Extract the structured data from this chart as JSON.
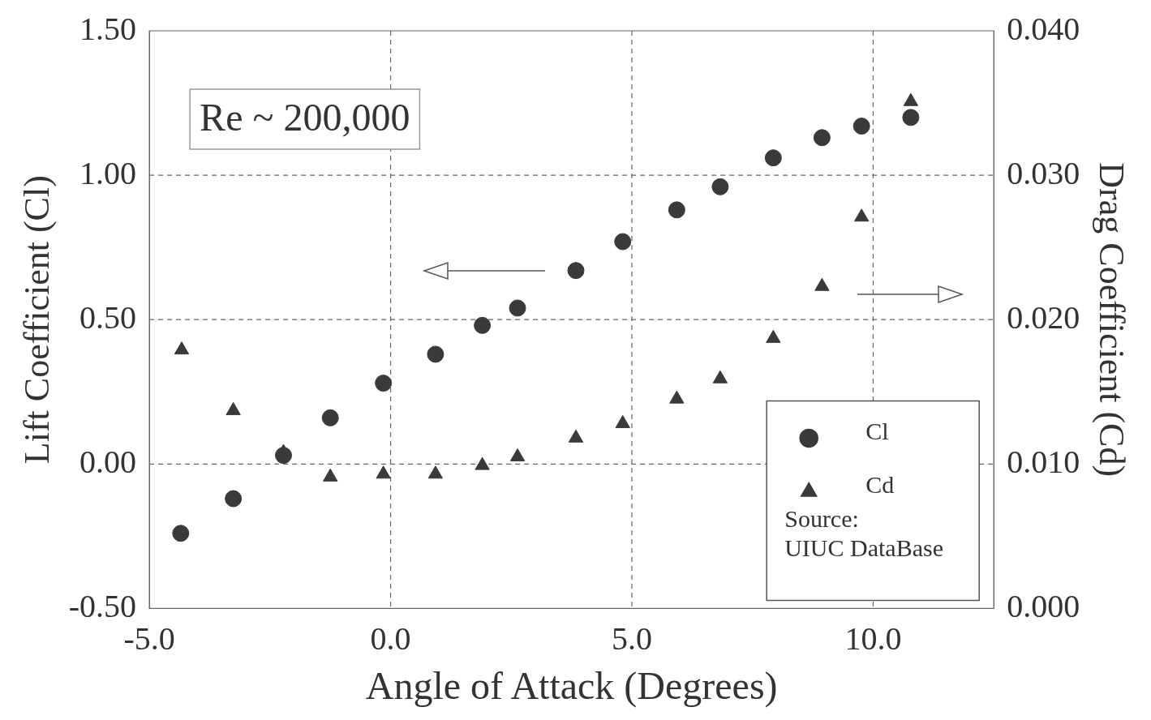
{
  "chart_data": {
    "type": "scatter",
    "xlabel": "Angle of Attack (Degrees)",
    "ylabel": "Lift Coefficient (Cl)",
    "y2label": "Drag Coefficient (Cd)",
    "xlim": [
      -5,
      12.5
    ],
    "xticks": [
      {
        "value": -5,
        "label": "-5.0"
      },
      {
        "value": 0,
        "label": "0.0"
      },
      {
        "value": 5,
        "label": "5.0"
      },
      {
        "value": 10,
        "label": "10.0"
      }
    ],
    "ylim": [
      -0.5,
      1.5
    ],
    "yticks": [
      {
        "value": -0.5,
        "label": "-0.50"
      },
      {
        "value": 0,
        "label": "0.00"
      },
      {
        "value": 0.5,
        "label": "0.50"
      },
      {
        "value": 1,
        "label": "1.00"
      },
      {
        "value": 1.5,
        "label": "1.50"
      }
    ],
    "y2lim": [
      0,
      0.04
    ],
    "y2ticks": [
      {
        "value": 0,
        "label": "0.000"
      },
      {
        "value": 0.01,
        "label": "0.010"
      },
      {
        "value": 0.02,
        "label": "0.020"
      },
      {
        "value": 0.03,
        "label": "0.030"
      },
      {
        "value": 0.04,
        "label": "0.040"
      }
    ],
    "grid": true,
    "line_style": "dashed",
    "legend": "bottom right",
    "annotations": [
      "Re ~ 200,000",
      "Source:\nUIUC DataBase"
    ],
    "series": [
      {
        "name": "Cl",
        "color": "#3a3a3a",
        "marker": "circle",
        "x": [
          -4.35,
          -3.26,
          -2.22,
          -1.25,
          -0.15,
          0.93,
          1.9,
          2.63,
          3.84,
          4.81,
          5.93,
          6.83,
          7.93,
          8.94,
          9.76,
          10.78
        ],
        "values": [
          -0.24,
          -0.12,
          0.03,
          0.16,
          0.28,
          0.38,
          0.48,
          0.54,
          0.67,
          0.77,
          0.88,
          0.96,
          1.06,
          1.13,
          1.17,
          1.2
        ]
      },
      {
        "name": "Cd",
        "color": "#3a3a3a",
        "marker": "triangle",
        "axis": "y2",
        "x": [
          -4.33,
          -3.26,
          -2.22,
          -1.25,
          -0.15,
          0.93,
          1.9,
          2.63,
          3.84,
          4.81,
          5.93,
          6.83,
          7.93,
          8.94,
          9.76,
          10.78
        ],
        "values": [
          0.0179,
          0.0137,
          0.0108,
          0.0091,
          0.0093,
          0.0093,
          0.0099,
          0.0105,
          0.0118,
          0.0128,
          0.0145,
          0.0159,
          0.0187,
          0.0223,
          0.0271,
          0.0351
        ]
      }
    ]
  }
}
